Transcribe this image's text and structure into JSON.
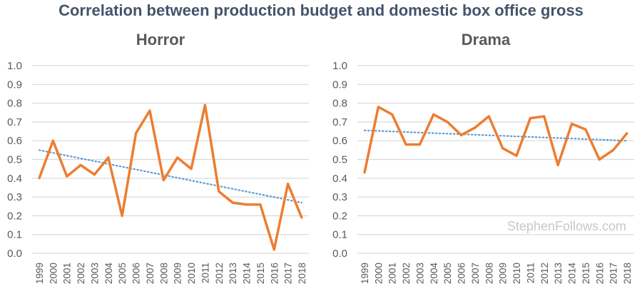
{
  "title": "Correlation between production budget and domestic box office gross",
  "watermark": "StephenFollows.com",
  "colors": {
    "line": "#ed7d31",
    "trend": "#5b9bd5",
    "grid": "#d9d9d9"
  },
  "chart_data": [
    {
      "type": "line",
      "title": "Horror",
      "categories": [
        "1999",
        "2000",
        "2001",
        "2002",
        "2003",
        "2004",
        "2005",
        "2006",
        "2007",
        "2008",
        "2009",
        "2010",
        "2011",
        "2012",
        "2013",
        "2014",
        "2015",
        "2016",
        "2017",
        "2018"
      ],
      "values": [
        0.4,
        0.6,
        0.41,
        0.47,
        0.42,
        0.51,
        0.2,
        0.64,
        0.76,
        0.39,
        0.51,
        0.45,
        0.79,
        0.33,
        0.27,
        0.26,
        0.26,
        0.02,
        0.37,
        0.19
      ],
      "trendline": {
        "type": "linear",
        "start": 0.55,
        "end": 0.27
      },
      "yticks": [
        "0.0",
        "0.1",
        "0.2",
        "0.3",
        "0.4",
        "0.5",
        "0.6",
        "0.7",
        "0.8",
        "0.9",
        "1.0"
      ],
      "ylim": [
        0,
        1
      ],
      "grid": true
    },
    {
      "type": "line",
      "title": "Drama",
      "categories": [
        "1999",
        "2000",
        "2001",
        "2002",
        "2003",
        "2004",
        "2005",
        "2006",
        "2007",
        "2008",
        "2009",
        "2010",
        "2011",
        "2012",
        "2013",
        "2014",
        "2015",
        "2016",
        "2017",
        "2018"
      ],
      "values": [
        0.43,
        0.78,
        0.74,
        0.58,
        0.58,
        0.74,
        0.7,
        0.63,
        0.67,
        0.73,
        0.56,
        0.52,
        0.72,
        0.73,
        0.47,
        0.69,
        0.66,
        0.5,
        0.55,
        0.64
      ],
      "trendline": {
        "type": "linear",
        "start": 0.655,
        "end": 0.6
      },
      "yticks": [
        "0.0",
        "0.1",
        "0.2",
        "0.3",
        "0.4",
        "0.5",
        "0.6",
        "0.7",
        "0.8",
        "0.9",
        "1.0"
      ],
      "ylim": [
        0,
        1
      ],
      "grid": true
    }
  ]
}
